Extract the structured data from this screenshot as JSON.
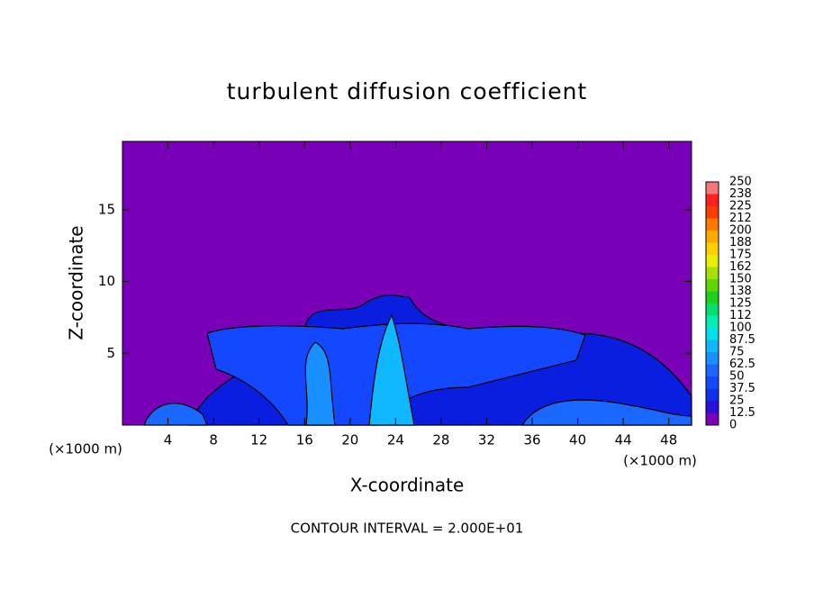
{
  "chart_data": {
    "type": "contour",
    "title": "turbulent diffusion coefficient",
    "xlabel": "X-coordinate",
    "ylabel": "Z-coordinate",
    "x_unit_label": "(×1000 m)",
    "y_unit_label": "(×1000 m)",
    "footnote": "CONTOUR INTERVAL = 2.000E+01",
    "xlim": [
      0,
      50
    ],
    "xticks": [
      4,
      8,
      12,
      16,
      20,
      24,
      28,
      32,
      36,
      40,
      44,
      48
    ],
    "ylim": [
      0,
      19.75
    ],
    "yticks": [
      5,
      10,
      15
    ],
    "background_color": "#7a00b8",
    "colorbar": {
      "levels": [
        0,
        12.5,
        25,
        37.5,
        50,
        62.5,
        75,
        87.5,
        100,
        112,
        125,
        138,
        150,
        162,
        175,
        188,
        200,
        212,
        225,
        238,
        250
      ],
      "colors": [
        "#7a00b8",
        "#2a10d8",
        "#1030f0",
        "#1448ff",
        "#1a68ff",
        "#1890ff",
        "#10b8ff",
        "#00e0e8",
        "#00f0b0",
        "#00e070",
        "#20d020",
        "#60d800",
        "#a8e000",
        "#e8f000",
        "#ffd000",
        "#ffa800",
        "#ff7800",
        "#ff3c00",
        "#ff2020",
        "#f87878"
      ]
    }
  }
}
